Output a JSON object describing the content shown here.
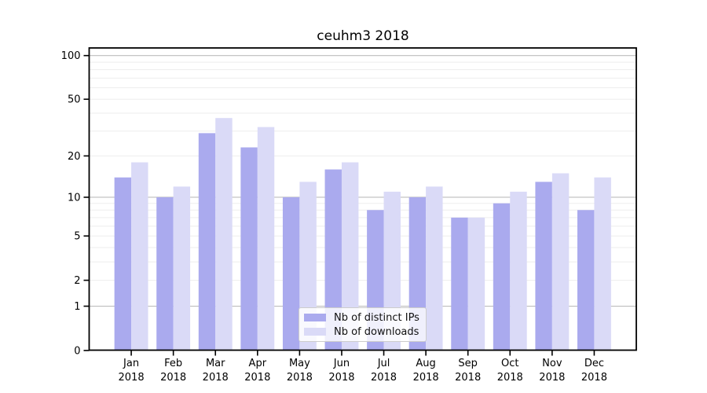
{
  "title": "ceuhm3 2018",
  "chart_data": {
    "type": "bar",
    "title": "ceuhm3 2018",
    "categories": [
      "Jan",
      "Feb",
      "Mar",
      "Apr",
      "May",
      "Jun",
      "Jul",
      "Aug",
      "Sep",
      "Oct",
      "Nov",
      "Dec"
    ],
    "x_sub_label": "2018",
    "series": [
      {
        "name": "Nb of distinct IPs",
        "color": "#aaaaee",
        "values": [
          14,
          10,
          29,
          23,
          10,
          16,
          8,
          10,
          7,
          9,
          13,
          8
        ]
      },
      {
        "name": "Nb of downloads",
        "color": "#dadaf7",
        "values": [
          18,
          12,
          37,
          32,
          13,
          18,
          11,
          12,
          7,
          11,
          15,
          14
        ]
      }
    ],
    "y_scale": "log1p",
    "ylim": [
      0,
      113
    ],
    "y_tick_values": [
      0,
      1,
      2,
      5,
      10,
      20,
      50,
      100
    ],
    "y_tick_labels": [
      "0",
      "1",
      "2",
      "5",
      "10",
      "20",
      "50",
      "100"
    ],
    "y_major_gridlines": [
      1,
      10,
      100
    ],
    "y_minor_gridlines": [
      2,
      3,
      4,
      5,
      6,
      7,
      8,
      9,
      20,
      30,
      40,
      50,
      60,
      70,
      80,
      90
    ],
    "grid": true,
    "legend_position": "lower-center",
    "colors": {
      "major_grid": "#bdbdbd",
      "minor_grid": "#ededed",
      "spine": "#000000",
      "tick_text": "#000000",
      "background": "#ffffff"
    }
  }
}
